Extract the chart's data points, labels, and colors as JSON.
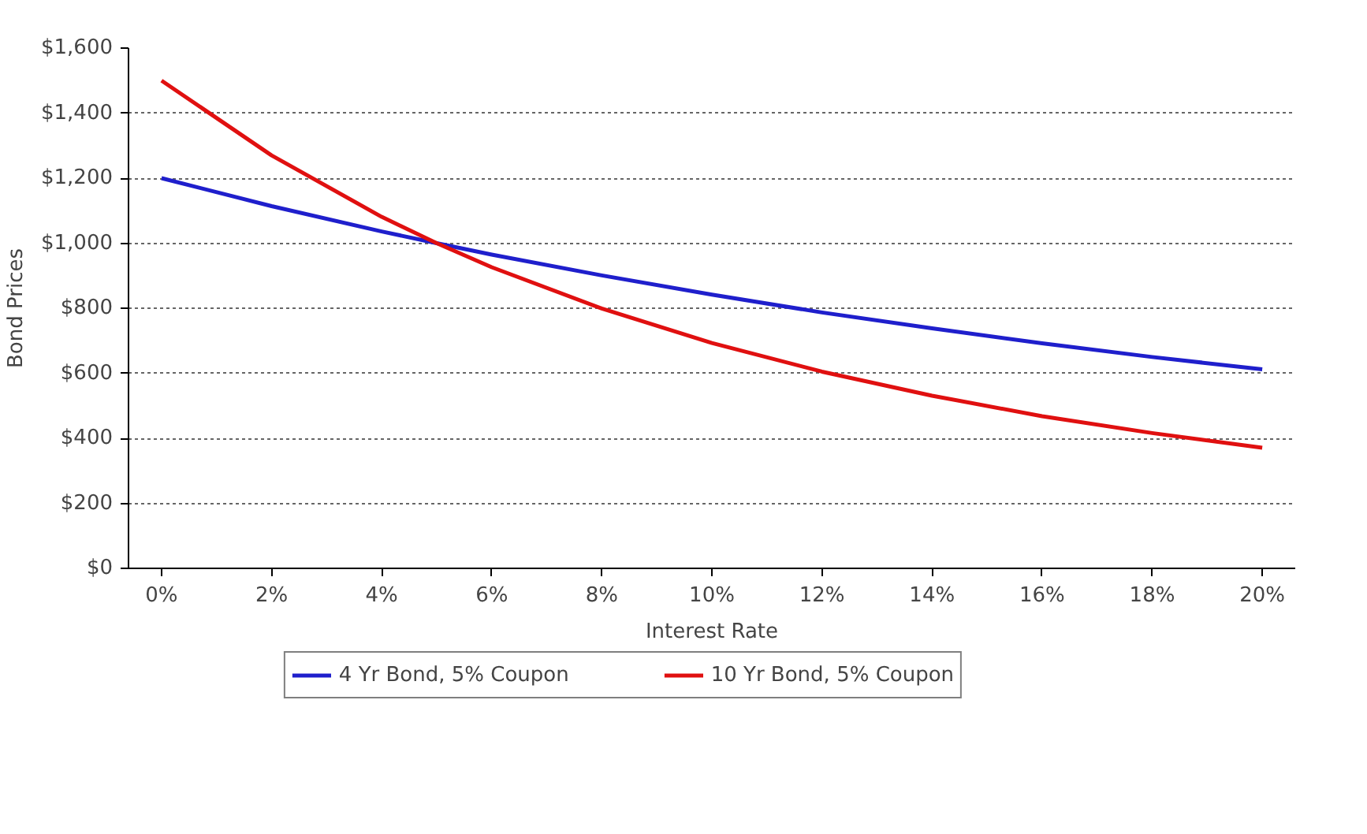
{
  "chart_data": {
    "type": "line",
    "xlabel": "Interest Rate",
    "ylabel": "Bond Prices",
    "x": [
      0,
      2,
      4,
      5,
      6,
      8,
      10,
      12,
      14,
      16,
      18,
      20
    ],
    "series": [
      {
        "name": "4 Yr Bond, 5% Coupon",
        "color": "#1f1fcc",
        "values": [
          1200,
          1114,
          1036,
          1000,
          965,
          901,
          842,
          787,
          738,
          692,
          650,
          612
        ]
      },
      {
        "name": "10 Yr Bond, 5% Coupon",
        "color": "#e01010",
        "values": [
          1500,
          1270,
          1081,
          1000,
          926,
          799,
          693,
          605,
          531,
          468,
          416,
          371
        ]
      }
    ],
    "xlim": [
      -0.6,
      20.6
    ],
    "xticks": [
      {
        "value": 0,
        "label": "0%"
      },
      {
        "value": 2,
        "label": "2%"
      },
      {
        "value": 4,
        "label": "4%"
      },
      {
        "value": 6,
        "label": "6%"
      },
      {
        "value": 8,
        "label": "8%"
      },
      {
        "value": 10,
        "label": "10%"
      },
      {
        "value": 12,
        "label": "12%"
      },
      {
        "value": 14,
        "label": "14%"
      },
      {
        "value": 16,
        "label": "16%"
      },
      {
        "value": 18,
        "label": "18%"
      },
      {
        "value": 20,
        "label": "20%"
      }
    ],
    "ylim": [
      0,
      1600
    ],
    "yticks": [
      {
        "value": 0,
        "label": "$0"
      },
      {
        "value": 200,
        "label": "$200"
      },
      {
        "value": 400,
        "label": "$400"
      },
      {
        "value": 600,
        "label": "$600"
      },
      {
        "value": 800,
        "label": "$800"
      },
      {
        "value": 1000,
        "label": "$1,000"
      },
      {
        "value": 1200,
        "label": "$1,200"
      },
      {
        "value": 1400,
        "label": "$1,400"
      },
      {
        "value": 1600,
        "label": "$1,600"
      }
    ],
    "grid": "y",
    "legend": "bottom",
    "marker": "none",
    "line_style": "solid"
  }
}
